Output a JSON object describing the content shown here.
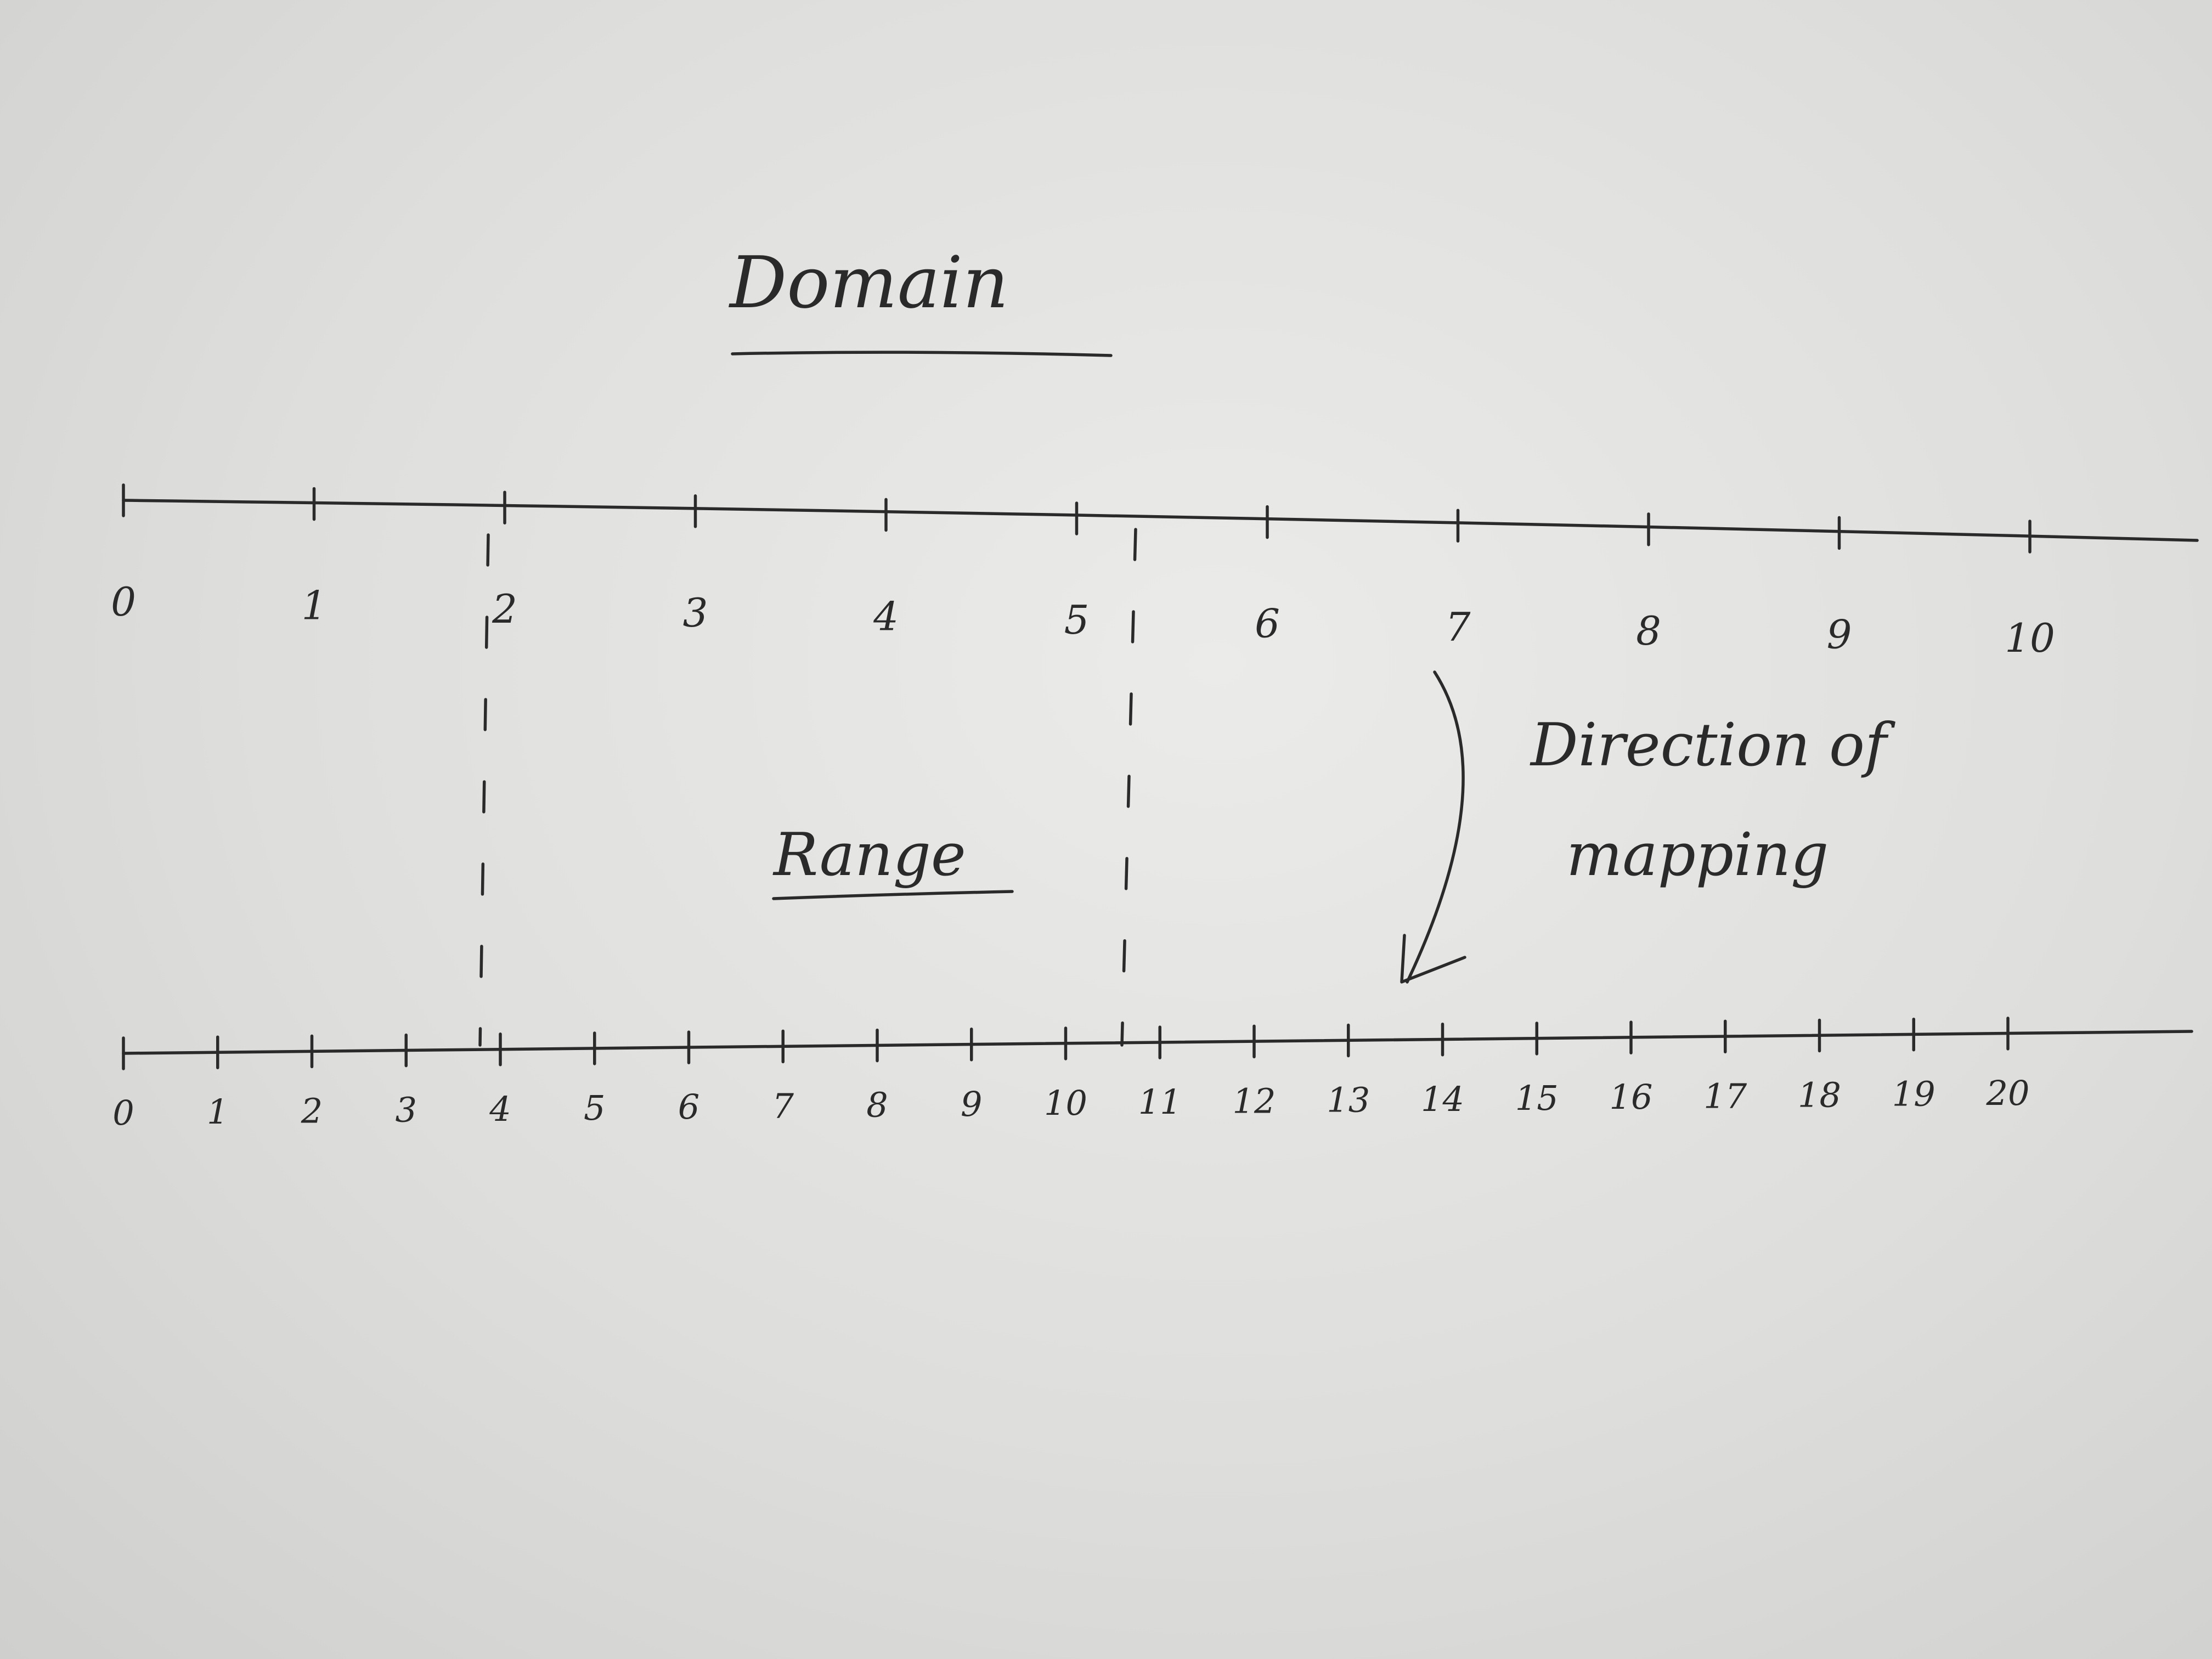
{
  "diagram": {
    "domain_label": "Domain",
    "range_label": "Range",
    "direction_label_line1": "Direction of",
    "direction_label_line2": "mapping",
    "domain_axis": {
      "ticks": [
        "0",
        "1",
        "2",
        "3",
        "4",
        "5",
        "6",
        "7",
        "8",
        "9",
        "10"
      ]
    },
    "range_axis": {
      "ticks": [
        "0",
        "1",
        "2",
        "3",
        "4",
        "5",
        "6",
        "7",
        "8",
        "9",
        "10",
        "11",
        "12",
        "13",
        "14",
        "15",
        "16",
        "17",
        "18",
        "19",
        "20"
      ]
    },
    "dashed_links": [
      {
        "from": 2,
        "to": 4
      },
      {
        "from": 5.5,
        "to": 11
      }
    ],
    "arrow": {
      "from": 7,
      "to": 14
    }
  }
}
